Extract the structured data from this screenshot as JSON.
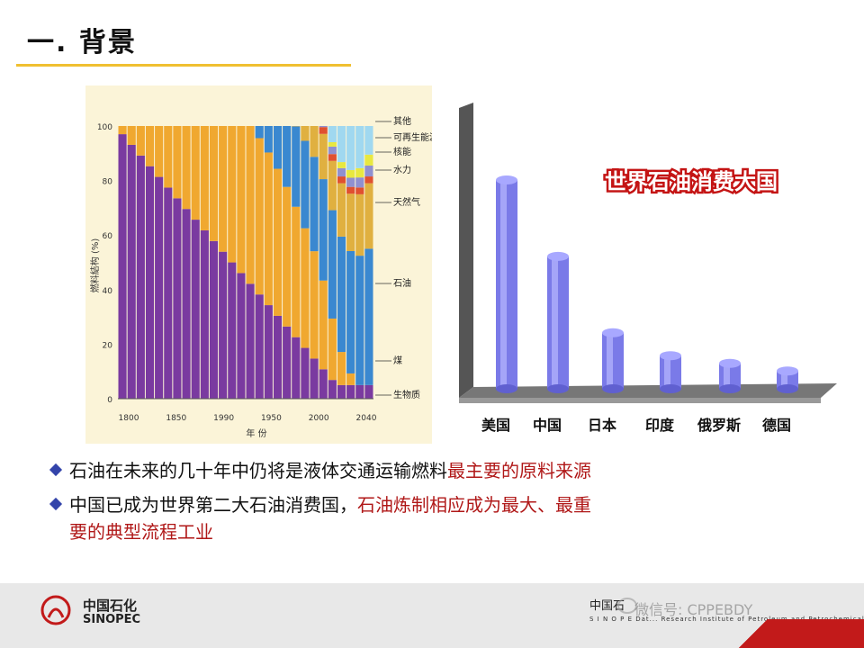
{
  "slide": {
    "title": "一. 背景"
  },
  "chart_left": {
    "type": "area",
    "ylabel": "燃料結构 (%)",
    "xlabel": "年 份",
    "y_ticks": [
      "0",
      "20",
      "40",
      "60",
      "80",
      "100"
    ],
    "x_ticks": [
      "1800",
      "1850",
      "1990",
      "1950",
      "2000",
      "2040"
    ],
    "legend": [
      "其他",
      "可再生能源",
      "核能",
      "水力",
      "天然气",
      "石油",
      "煤",
      "生物质"
    ],
    "colors": {
      "bio": "#7a3aa0",
      "coal": "#f0a830",
      "oil": "#3a88d0",
      "gas": "#e0b040",
      "hydro": "#e05030",
      "nuclear": "#9090d0",
      "renew": "#e8e840",
      "other": "#a0d8f0"
    }
  },
  "chart_data": {
    "type": "bar",
    "title": "世界石油消费大国",
    "categories": [
      "美国",
      "中国",
      "日本",
      "印度",
      "俄罗斯",
      "德国"
    ],
    "values": [
      82,
      52,
      22,
      13,
      10,
      7
    ],
    "ylim": [
      0,
      100
    ]
  },
  "bullets": [
    {
      "normal": "石油在未来的几十年中仍将是液体交通运输燃料",
      "highlight": "最主要的原料来源",
      "rest": ""
    },
    {
      "normal": "中国已成为世界第二大石油消费国，",
      "highlight": "石油炼制相应成为最大、最重",
      "rest": "要的典型流程工业"
    }
  ],
  "footer": {
    "brand_cn": "中国石化",
    "brand_en": "SINOPEC",
    "inst_cn": "中国石",
    "inst_en": "S I N O P E  Dat... Research Institute of Petroleum and Petrochemicals",
    "watermark": "微信号: CPPEBDY"
  }
}
